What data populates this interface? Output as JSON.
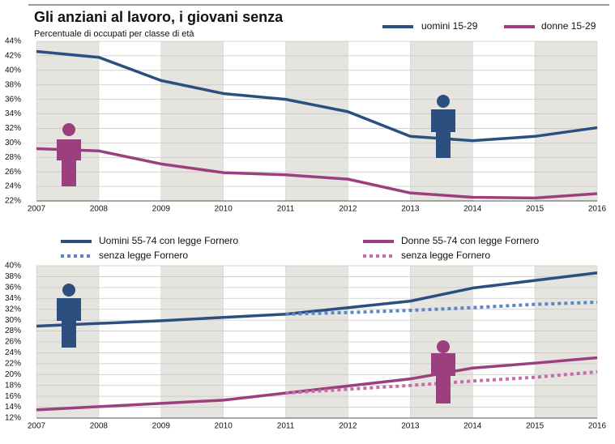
{
  "chart_data": [
    {
      "type": "line",
      "title": "Gli anziani al lavoro, i giovani senza",
      "subtitle": "Percentuale di occupati per classe di età",
      "x": [
        2007,
        2008,
        2009,
        2010,
        2011,
        2012,
        2013,
        2014,
        2015,
        2016
      ],
      "xlim": [
        2007,
        2016
      ],
      "xticks": [
        2007,
        2008,
        2009,
        2010,
        2011,
        2012,
        2013,
        2014,
        2015,
        2016
      ],
      "ylim": [
        22,
        44
      ],
      "yticks": [
        {
          "value": 22,
          "label": "22%"
        },
        {
          "value": 24,
          "label": "24%"
        },
        {
          "value": 26,
          "label": "26%"
        },
        {
          "value": 28,
          "label": "28%"
        },
        {
          "value": 30,
          "label": "30%"
        },
        {
          "value": 32,
          "label": "32%"
        },
        {
          "value": 34,
          "label": "34%"
        },
        {
          "value": 36,
          "label": "36%"
        },
        {
          "value": 38,
          "label": "38%"
        },
        {
          "value": 40,
          "label": "40%"
        },
        {
          "value": 42,
          "label": "42%"
        },
        {
          "value": 44,
          "label": "44%"
        }
      ],
      "grid": true,
      "series": [
        {
          "name": "uomini 15-29",
          "color": "#2b4f7e",
          "style": "solid",
          "values": [
            42.6,
            41.8,
            38.6,
            36.8,
            36.0,
            34.3,
            30.9,
            30.3,
            30.9,
            32.1
          ]
        },
        {
          "name": "donne 15-29",
          "color": "#9b3f7f",
          "style": "solid",
          "values": [
            29.2,
            28.9,
            27.1,
            25.9,
            25.6,
            25.0,
            23.1,
            22.5,
            22.4,
            23.0
          ]
        }
      ]
    },
    {
      "type": "line",
      "x": [
        2007,
        2008,
        2009,
        2010,
        2011,
        2012,
        2013,
        2014,
        2015,
        2016
      ],
      "xlim": [
        2007,
        2016
      ],
      "xticks": [
        2007,
        2008,
        2009,
        2010,
        2011,
        2012,
        2013,
        2014,
        2015,
        2016
      ],
      "ylim": [
        12,
        40
      ],
      "yticks": [
        {
          "value": 12,
          "label": "12%"
        },
        {
          "value": 14,
          "label": "14%"
        },
        {
          "value": 16,
          "label": "16%"
        },
        {
          "value": 18,
          "label": "18%"
        },
        {
          "value": 20,
          "label": "20%"
        },
        {
          "value": 22,
          "label": "22%"
        },
        {
          "value": 24,
          "label": "24%"
        },
        {
          "value": 26,
          "label": "26%"
        },
        {
          "value": 28,
          "label": "28%"
        },
        {
          "value": 30,
          "label": "30%"
        },
        {
          "value": 32,
          "label": "32%"
        },
        {
          "value": 34,
          "label": "34%"
        },
        {
          "value": 36,
          "label": "36%"
        },
        {
          "value": 38,
          "label": "38%"
        },
        {
          "value": 40,
          "label": "40%"
        }
      ],
      "grid": true,
      "series": [
        {
          "name": "Uomini 55-74 con legge Fornero",
          "color": "#2b4f7e",
          "style": "solid",
          "values": [
            28.9,
            29.4,
            29.9,
            30.5,
            31.1,
            32.3,
            33.5,
            35.9,
            37.3,
            38.7
          ]
        },
        {
          "name": "senza legge Fornero",
          "color": "#5b86c7",
          "style": "dotted",
          "values": [
            null,
            null,
            null,
            null,
            31.1,
            31.4,
            31.8,
            32.3,
            32.9,
            33.3
          ]
        },
        {
          "name": "Donne 55-74 con legge Fornero",
          "color": "#9b3f7f",
          "style": "solid",
          "values": [
            13.5,
            14.1,
            14.7,
            15.3,
            16.6,
            17.9,
            19.2,
            21.2,
            22.1,
            23.1
          ]
        },
        {
          "name": "senza legge Fornero",
          "color": "#c46ea6",
          "style": "dotted",
          "values": [
            null,
            null,
            null,
            null,
            16.6,
            17.3,
            18.0,
            18.8,
            19.5,
            20.5
          ]
        }
      ]
    }
  ]
}
